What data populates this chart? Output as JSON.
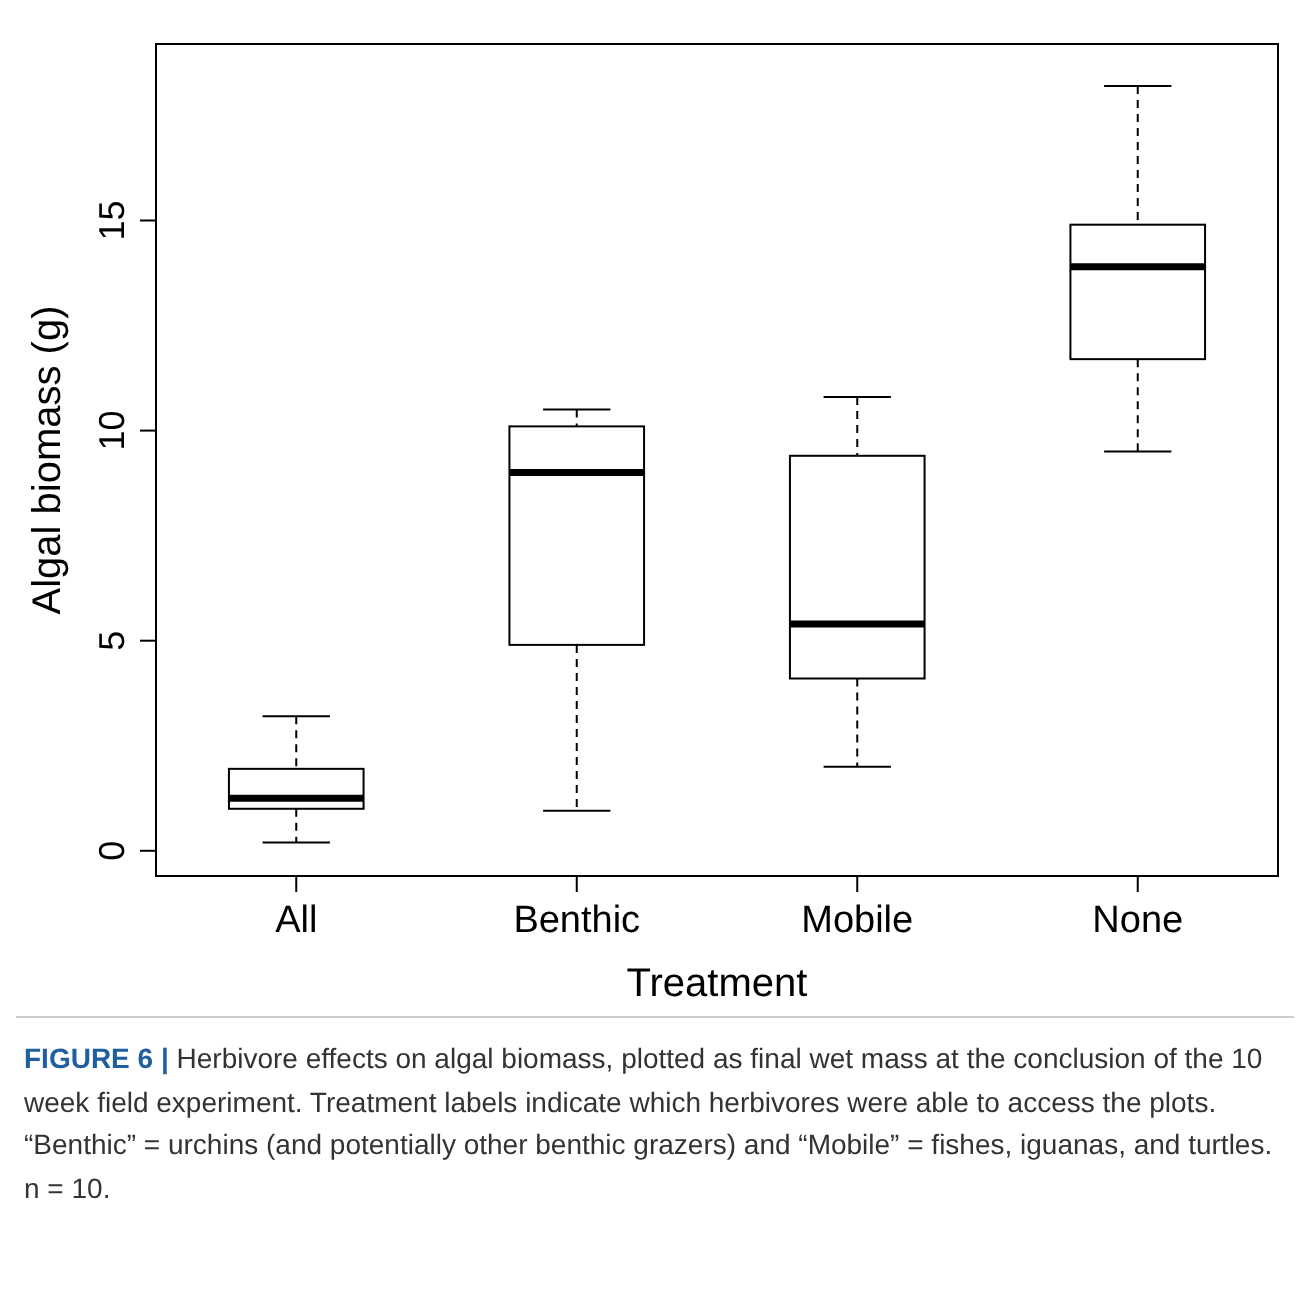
{
  "chart_data": {
    "type": "box",
    "xlabel": "Treatment",
    "ylabel": "Algal biomass (g)",
    "categories": [
      "All",
      "Benthic",
      "Mobile",
      "None"
    ],
    "boxes": [
      {
        "low": 0.2,
        "q1": 1.0,
        "median": 1.25,
        "q3": 1.95,
        "high": 3.2
      },
      {
        "low": 0.95,
        "q1": 4.9,
        "median": 9.0,
        "q3": 10.1,
        "high": 10.5
      },
      {
        "low": 2.0,
        "q1": 4.1,
        "median": 5.4,
        "q3": 9.4,
        "high": 10.8
      },
      {
        "low": 9.5,
        "q1": 11.7,
        "median": 13.9,
        "q3": 14.9,
        "high": 18.2
      }
    ],
    "ylim": [
      -0.6,
      19.2
    ],
    "yticks": [
      0,
      5,
      10,
      15
    ],
    "grid": false,
    "annotations": [
      "FIGURE 6 |",
      "Herbivore effects on algal biomass, plotted as final wet mass at the conclusion of the 10 week field experiment. Treatment labels indicate which herbivores were able to access the plots. “Benthic” = urchins (and potentially other benthic grazers) and “Mobile” = fishes, iguanas, and turtles. n = 10."
    ]
  }
}
